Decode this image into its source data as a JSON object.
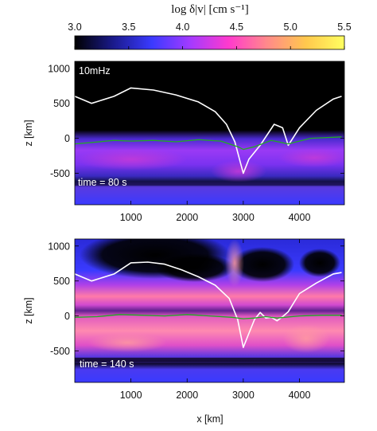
{
  "figure": {
    "colorbar": {
      "label": "log δ|v|   [cm s⁻¹]",
      "ticks": [
        "3.0",
        "3.5",
        "4.0",
        "4.5",
        "5.0",
        "5.5"
      ],
      "range": [
        3.0,
        5.5
      ],
      "colormap": [
        "#000000",
        "#1a1a8c",
        "#3a3aff",
        "#a43aff",
        "#ff3acd",
        "#ff8a8a",
        "#ffc84d",
        "#ffff60"
      ]
    },
    "panels": [
      {
        "frequency_label": "10mHz",
        "time_label": "time = 80 s",
        "ylabel": "z [km]",
        "yticks": [
          "1000",
          "500",
          "0",
          "-500"
        ],
        "xticks": [
          "1000",
          "2000",
          "3000",
          "4000"
        ]
      },
      {
        "time_label": "time = 140 s",
        "ylabel": "z [km]",
        "yticks": [
          "1000",
          "500",
          "0",
          "-500"
        ],
        "xticks": [
          "1000",
          "2000",
          "3000",
          "4000"
        ],
        "xlabel": "x [km]"
      }
    ]
  },
  "chart_data": [
    {
      "type": "heatmap",
      "quantity": "log δ|v| [cm s^-1]",
      "xlim": [
        0,
        4800
      ],
      "ylim": [
        -950,
        1100
      ],
      "series": [
        {
          "color": "#ffffff",
          "x": [
            0,
            300,
            700,
            1000,
            1400,
            1800,
            2200,
            2500,
            2700,
            2850,
            2950,
            3000,
            3100,
            3300,
            3550,
            3700,
            3800,
            4000,
            4300,
            4600,
            4750
          ],
          "y": [
            600,
            500,
            600,
            720,
            690,
            620,
            520,
            380,
            200,
            -50,
            -350,
            -500,
            -300,
            -100,
            200,
            150,
            -100,
            150,
            400,
            560,
            600
          ]
        },
        {
          "color": "#22aa22",
          "x": [
            0,
            300,
            700,
            1000,
            1400,
            1800,
            2200,
            2600,
            2900,
            3000,
            3200,
            3500,
            3800,
            4200,
            4750
          ],
          "y": [
            -80,
            -60,
            -30,
            -40,
            -30,
            -50,
            -20,
            -40,
            -120,
            -160,
            -120,
            -30,
            -80,
            0,
            20
          ]
        }
      ]
    },
    {
      "type": "heatmap",
      "quantity": "log δ|v| [cm s^-1]",
      "xlim": [
        0,
        4800
      ],
      "ylim": [
        -950,
        1100
      ],
      "series": [
        {
          "color": "#ffffff",
          "x": [
            0,
            300,
            700,
            1000,
            1300,
            1600,
            1900,
            2200,
            2500,
            2750,
            2900,
            3000,
            3100,
            3200,
            3300,
            3400,
            3500,
            3600,
            3700,
            3800,
            4000,
            4300,
            4600,
            4750
          ],
          "y": [
            600,
            500,
            600,
            760,
            770,
            740,
            660,
            560,
            440,
            250,
            -50,
            -450,
            -250,
            -50,
            50,
            -30,
            -20,
            -70,
            -10,
            60,
            320,
            470,
            600,
            620
          ]
        },
        {
          "color": "#22aa22",
          "x": [
            0,
            400,
            800,
            1200,
            1600,
            2000,
            2400,
            2800,
            3000,
            3200,
            3400,
            3600,
            4000,
            4400,
            4750
          ],
          "y": [
            -20,
            -10,
            20,
            10,
            0,
            20,
            0,
            -20,
            -40,
            -30,
            -10,
            -30,
            0,
            10,
            10
          ]
        }
      ]
    }
  ]
}
